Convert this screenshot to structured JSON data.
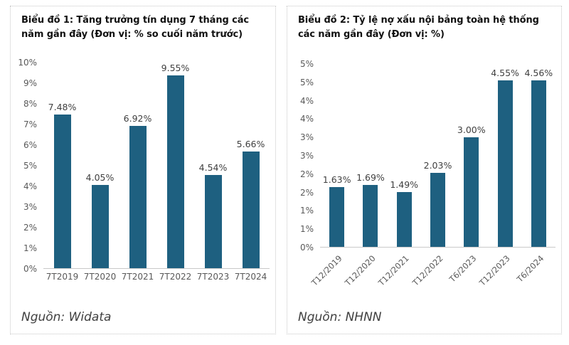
{
  "chart_data": [
    {
      "type": "bar",
      "title": "Biểu đồ 1: Tăng trưởng tín dụng 7 tháng các năm gần đây (Đơn vị: % so cuối năm trước)",
      "categories": [
        "7T2019",
        "7T2020",
        "7T2021",
        "7T2022",
        "7T2023",
        "7T2024"
      ],
      "values": [
        7.48,
        4.05,
        6.92,
        9.55,
        4.54,
        5.66
      ],
      "value_labels": [
        "7.48%",
        "4.05%",
        "6.92%",
        "9.55%",
        "4.54%",
        "5.66%"
      ],
      "ylim": [
        0,
        10
      ],
      "ytick_labels_top_to_bottom": [
        "10%",
        "9%",
        "8%",
        "7%",
        "6%",
        "5%",
        "4%",
        "3%",
        "2%",
        "1%",
        "0%"
      ],
      "xlabel": "",
      "ylabel": "",
      "grid": false,
      "legend": false,
      "x_label_rotation": 0,
      "bar_color": "#1E6080",
      "source": "Nguồn: Widata"
    },
    {
      "type": "bar",
      "title": "Biểu đồ 2: Tỷ lệ nợ xấu nội bảng toàn hệ thống các năm gần đây (Đơn vị: %)",
      "categories": [
        "T12/2019",
        "T12/2020",
        "T12/2021",
        "T12/2022",
        "T6/2023",
        "T12/2023",
        "T6/2024"
      ],
      "values": [
        1.63,
        1.69,
        1.49,
        2.03,
        3.0,
        4.55,
        4.56
      ],
      "value_labels": [
        "1.63%",
        "1.69%",
        "1.49%",
        "2.03%",
        "3.00%",
        "4.55%",
        "4.56%"
      ],
      "ylim": [
        0,
        5
      ],
      "ytick_labels_top_to_bottom": [
        "5%",
        "5%",
        "4%",
        "4%",
        "3%",
        "3%",
        "2%",
        "2%",
        "1%",
        "1%",
        "0%"
      ],
      "xlabel": "",
      "ylabel": "",
      "grid": false,
      "legend": false,
      "x_label_rotation": -45,
      "bar_color": "#1E6080",
      "source": "Nguồn: NHNN"
    }
  ],
  "colors": {
    "bar": "#1E6080",
    "axis_line": "#c9c9c9",
    "tick_text": "#595959",
    "value_text": "#3f3f3f",
    "title_text": "#111111",
    "border_dotted": "#c6c6c6"
  }
}
